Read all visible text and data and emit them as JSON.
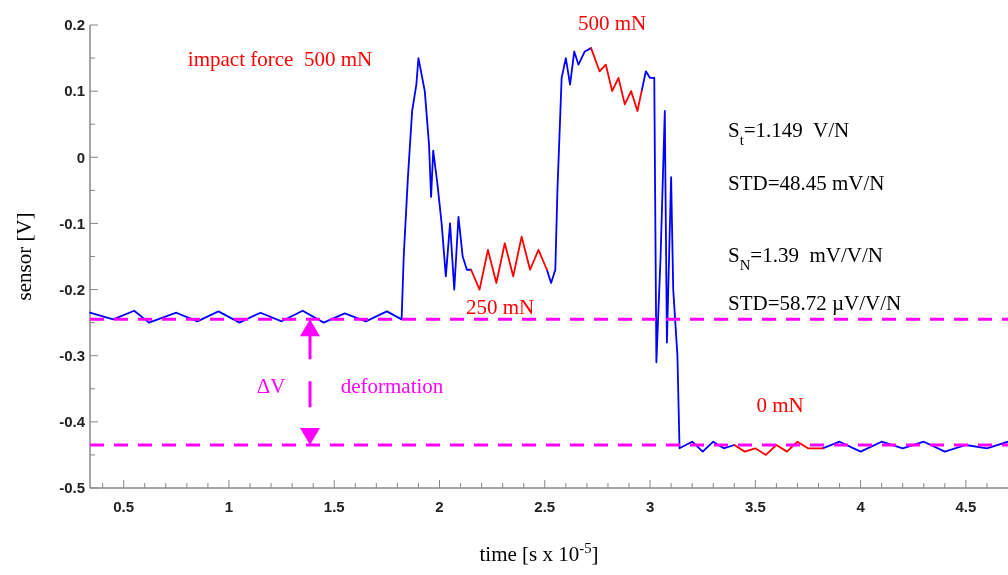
{
  "chart_data": {
    "type": "line",
    "xlabel": "time [s x 10$^{-5}$]",
    "ylabel": "sensor [V]",
    "xlim": [
      0.34,
      4.7
    ],
    "ylim": [
      -0.5,
      0.2
    ],
    "xticks": [
      {
        "value": 0.4,
        "label": null
      },
      0.5,
      {
        "value": 0.6,
        "label": null
      },
      {
        "value": 0.7,
        "label": null
      },
      {
        "value": 0.8,
        "label": null
      },
      {
        "value": 0.9,
        "label": null
      },
      1,
      {
        "value": 1.1,
        "label": null
      },
      {
        "value": 1.2,
        "label": null
      },
      {
        "value": 1.3,
        "label": null
      },
      {
        "value": 1.4,
        "label": null
      },
      1.5,
      {
        "value": 1.6,
        "label": null
      },
      {
        "value": 1.7,
        "label": null
      },
      {
        "value": 1.8,
        "label": null
      },
      {
        "value": 1.9,
        "label": null
      },
      2,
      {
        "value": 2.1,
        "label": null
      },
      {
        "value": 2.2,
        "label": null
      },
      {
        "value": 2.3,
        "label": null
      },
      {
        "value": 2.4,
        "label": null
      },
      2.5,
      {
        "value": 2.6,
        "label": null
      },
      {
        "value": 2.7,
        "label": null
      },
      {
        "value": 2.8,
        "label": null
      },
      {
        "value": 2.9,
        "label": null
      },
      3,
      {
        "value": 3.1,
        "label": null
      },
      {
        "value": 3.2,
        "label": null
      },
      {
        "value": 3.3,
        "label": null
      },
      {
        "value": 3.4,
        "label": null
      },
      3.5,
      {
        "value": 3.6,
        "label": null
      },
      {
        "value": 3.7,
        "label": null
      },
      {
        "value": 3.8,
        "label": null
      },
      {
        "value": 3.9,
        "label": null
      },
      4,
      {
        "value": 4.1,
        "label": null
      },
      {
        "value": 4.2,
        "label": null
      },
      {
        "value": 4.3,
        "label": null
      },
      {
        "value": 4.4,
        "label": null
      },
      4.5,
      {
        "value": 4.6,
        "label": null
      }
    ],
    "yticks": [
      -0.5,
      {
        "value": -0.45,
        "label": null
      },
      -0.4,
      {
        "value": -0.35,
        "label": null
      },
      -0.3,
      {
        "value": -0.25,
        "label": null
      },
      -0.2,
      {
        "value": -0.15,
        "label": null
      },
      -0.1,
      {
        "value": -0.05,
        "label": null
      },
      0,
      {
        "value": 0.05,
        "label": null
      },
      0.1,
      {
        "value": 0.15,
        "label": null
      },
      0.2
    ],
    "grid": false,
    "line_style": "solid",
    "series": [
      {
        "color": "#0000ff",
        "x": [
          0.34,
          0.45,
          0.55,
          0.62,
          0.75,
          0.85,
          0.95,
          1.05,
          1.15,
          1.25,
          1.35,
          1.45,
          1.55,
          1.65,
          1.75,
          1.82,
          1.83,
          1.85,
          1.87,
          1.89,
          1.9,
          1.93,
          1.95,
          1.96,
          1.97,
          1.99,
          2.01,
          2.03,
          2.05,
          2.07,
          2.09,
          2.11,
          2.13,
          2.15,
          2.3,
          2.51,
          2.53,
          2.55,
          2.56,
          2.58,
          2.6,
          2.62,
          2.64,
          2.66,
          2.69,
          2.72,
          2.85,
          2.96,
          2.98,
          3.0,
          3.02,
          3.03,
          3.05,
          3.07,
          3.08,
          3.1,
          3.11,
          3.13,
          3.14,
          3.2,
          3.25,
          3.3,
          3.35,
          3.4,
          3.6,
          3.82,
          3.9,
          4.0,
          4.1,
          4.2,
          4.3,
          4.4,
          4.5,
          4.6,
          4.7
        ],
        "values": [
          -0.235,
          -0.245,
          -0.232,
          -0.25,
          -0.235,
          -0.248,
          -0.233,
          -0.25,
          -0.235,
          -0.248,
          -0.232,
          -0.25,
          -0.236,
          -0.248,
          -0.233,
          -0.245,
          -0.15,
          -0.03,
          0.07,
          0.11,
          0.15,
          0.1,
          0.02,
          -0.06,
          0.01,
          -0.04,
          -0.1,
          -0.18,
          -0.1,
          -0.2,
          -0.09,
          -0.15,
          -0.17,
          -0.17,
          null,
          -0.17,
          -0.19,
          -0.17,
          -0.05,
          0.12,
          0.15,
          0.11,
          0.16,
          0.14,
          0.16,
          0.165,
          null,
          0.1,
          0.13,
          0.12,
          0.12,
          -0.31,
          -0.15,
          0.07,
          -0.28,
          -0.03,
          -0.2,
          -0.3,
          -0.44,
          -0.43,
          -0.445,
          -0.43,
          -0.44,
          -0.435,
          null,
          -0.44,
          -0.43,
          -0.445,
          -0.43,
          -0.44,
          -0.43,
          -0.445,
          -0.435,
          -0.44,
          -0.43
        ]
      },
      {
        "color": "#ff0000",
        "x": [
          2.15,
          2.19,
          2.23,
          2.27,
          2.31,
          2.35,
          2.39,
          2.43,
          2.47,
          2.51,
          2.62,
          2.72,
          2.76,
          2.79,
          2.82,
          2.85,
          2.88,
          2.91,
          2.94,
          2.96,
          3.2,
          3.4,
          3.45,
          3.5,
          3.55,
          3.6,
          3.65,
          3.7,
          3.75,
          3.82
        ],
        "values": [
          -0.17,
          -0.2,
          -0.14,
          -0.19,
          -0.13,
          -0.18,
          -0.12,
          -0.17,
          -0.14,
          -0.17,
          null,
          0.165,
          0.13,
          0.14,
          0.1,
          0.12,
          0.08,
          0.1,
          0.07,
          0.1,
          null,
          -0.435,
          -0.445,
          -0.44,
          -0.45,
          -0.435,
          -0.445,
          -0.43,
          -0.44,
          -0.44
        ]
      }
    ],
    "ref_lines": [
      {
        "axis": "y",
        "value": -0.245,
        "color": "#ff00ff",
        "line_style": "dashed"
      },
      {
        "axis": "y",
        "value": -0.435,
        "color": "#ff00ff",
        "line_style": "dashed"
      }
    ],
    "annotations": [
      "impact force  500 mN",
      "500 mN",
      "250 mN",
      "0 mN",
      "ΔV",
      "deformation",
      "S$_{t}$=1.149  V/N",
      "STD=48.45 mV/N",
      "S$_{N}$=1.39  mV/V/N",
      "STD=58.72 µV/V/N"
    ]
  }
}
